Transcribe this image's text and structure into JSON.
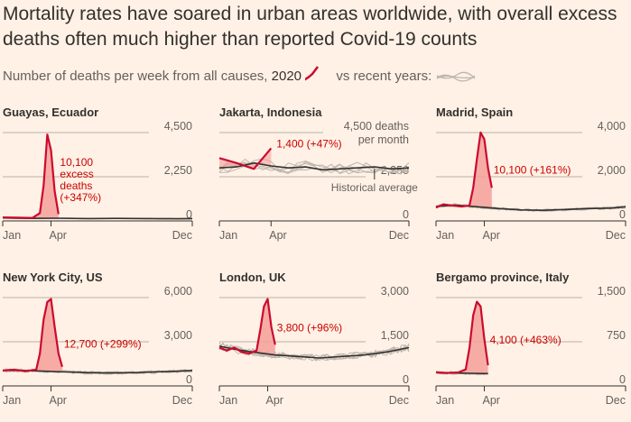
{
  "title": "Mortality rates have soared in urban areas worldwide, with overall excess deaths often much higher than reported Covid-19 counts",
  "subtitle": {
    "prefix": "Number of deaths per week from all causes,",
    "year": "2020",
    "suffix": "vs recent years:"
  },
  "colors": {
    "background": "#fff1e5",
    "series_2020": "#cc0a2e",
    "excess_fill": "#f4a09a",
    "average": "#33302e",
    "recent_years": "#bdb6ae",
    "grid": "#a39b93"
  },
  "chart_data": [
    {
      "type": "line",
      "title": "Guayas, Ecuador",
      "x_ticks": [
        "Jan",
        "Apr",
        "Dec"
      ],
      "y_ticks": [
        "4,500",
        "2,250",
        "0"
      ],
      "ylim": [
        0,
        4500
      ],
      "annotation": [
        "10,100",
        "excess",
        "deaths",
        "(+347%)"
      ],
      "series_2020": [
        [
          1,
          180
        ],
        [
          5,
          170
        ],
        [
          9,
          150
        ],
        [
          11,
          400
        ],
        [
          12,
          1800
        ],
        [
          13,
          4400
        ],
        [
          14,
          3600
        ],
        [
          15,
          1500
        ],
        [
          16,
          350
        ]
      ],
      "average": [
        [
          1,
          150
        ],
        [
          8,
          130
        ],
        [
          16,
          140
        ],
        [
          24,
          120
        ],
        [
          32,
          130
        ],
        [
          40,
          120
        ],
        [
          48,
          110
        ],
        [
          52,
          120
        ]
      ]
    },
    {
      "type": "line",
      "title": "Jakarta, Indonesia",
      "unit_note": [
        "4,500 deaths",
        "per month"
      ],
      "x_ticks": [
        "Jan",
        "Apr",
        "Dec"
      ],
      "y_ticks": [
        "2,250",
        "0"
      ],
      "ylim": [
        0,
        4500
      ],
      "annotation": [
        "1,400 (+47%)"
      ],
      "avg_label": "Historical average",
      "series_2020": [
        [
          1,
          3200
        ],
        [
          2,
          2950
        ],
        [
          3,
          2650
        ],
        [
          4,
          3700
        ]
      ],
      "average": [
        [
          1,
          2700
        ],
        [
          2,
          2750
        ],
        [
          3,
          2950
        ],
        [
          4,
          2800
        ],
        [
          5,
          2700
        ],
        [
          6,
          2750
        ],
        [
          7,
          2600
        ],
        [
          8,
          2650
        ],
        [
          9,
          2700
        ],
        [
          10,
          2750
        ],
        [
          11,
          2650
        ],
        [
          12,
          2700
        ]
      ]
    },
    {
      "type": "line",
      "title": "Madrid, Spain",
      "x_ticks": [
        "Jan",
        "Apr",
        "Dec"
      ],
      "y_ticks": [
        "4,000",
        "2,000",
        "0"
      ],
      "ylim": [
        0,
        4000
      ],
      "annotation": [
        "10,100 (+161%)"
      ],
      "series_2020": [
        [
          1,
          600
        ],
        [
          3,
          750
        ],
        [
          5,
          700
        ],
        [
          8,
          650
        ],
        [
          10,
          700
        ],
        [
          11,
          1500
        ],
        [
          12,
          2800
        ],
        [
          13,
          4000
        ],
        [
          14,
          3700
        ],
        [
          15,
          2400
        ],
        [
          16,
          1500
        ]
      ],
      "average": [
        [
          1,
          650
        ],
        [
          6,
          720
        ],
        [
          12,
          640
        ],
        [
          18,
          560
        ],
        [
          24,
          500
        ],
        [
          30,
          480
        ],
        [
          36,
          520
        ],
        [
          42,
          560
        ],
        [
          48,
          580
        ],
        [
          52,
          640
        ]
      ]
    },
    {
      "type": "line",
      "title": "New York City, US",
      "x_ticks": [
        "Jan",
        "Apr",
        "Dec"
      ],
      "y_ticks": [
        "6,000",
        "3,000",
        "0"
      ],
      "ylim": [
        0,
        6000
      ],
      "annotation": [
        "12,700 (+299%)"
      ],
      "series_2020": [
        [
          1,
          1050
        ],
        [
          4,
          1100
        ],
        [
          7,
          1000
        ],
        [
          10,
          1100
        ],
        [
          11,
          2200
        ],
        [
          12,
          4500
        ],
        [
          13,
          5700
        ],
        [
          14,
          5900
        ],
        [
          15,
          4000
        ],
        [
          16,
          2200
        ],
        [
          17,
          1300
        ]
      ],
      "average": [
        [
          1,
          1050
        ],
        [
          6,
          1050
        ],
        [
          12,
          1000
        ],
        [
          18,
          950
        ],
        [
          24,
          900
        ],
        [
          30,
          880
        ],
        [
          36,
          900
        ],
        [
          42,
          950
        ],
        [
          48,
          1000
        ],
        [
          52,
          1050
        ]
      ]
    },
    {
      "type": "line",
      "title": "London, UK",
      "x_ticks": [
        "Jan",
        "Apr",
        "Dec"
      ],
      "y_ticks": [
        "3,000",
        "1,500",
        "0"
      ],
      "ylim": [
        0,
        3000
      ],
      "annotation": [
        "3,800 (+96%)"
      ],
      "series_2020": [
        [
          1,
          1300
        ],
        [
          3,
          1200
        ],
        [
          5,
          1300
        ],
        [
          7,
          1150
        ],
        [
          9,
          1100
        ],
        [
          11,
          1200
        ],
        [
          12,
          1900
        ],
        [
          13,
          2700
        ],
        [
          14,
          2950
        ],
        [
          15,
          2000
        ],
        [
          16,
          1400
        ]
      ],
      "average": [
        [
          1,
          1350
        ],
        [
          5,
          1250
        ],
        [
          10,
          1150
        ],
        [
          16,
          1050
        ],
        [
          22,
          1000
        ],
        [
          28,
          950
        ],
        [
          34,
          1000
        ],
        [
          40,
          1050
        ],
        [
          46,
          1150
        ],
        [
          52,
          1300
        ]
      ]
    },
    {
      "type": "line",
      "title": "Bergamo province, Italy",
      "x_ticks": [
        "Jan",
        "Apr",
        "Dec"
      ],
      "y_ticks": [
        "1,500",
        "750",
        "0"
      ],
      "ylim": [
        0,
        1500
      ],
      "annotation": [
        "4,100 (+463%)"
      ],
      "series_2020": [
        [
          1,
          230
        ],
        [
          4,
          220
        ],
        [
          7,
          230
        ],
        [
          9,
          280
        ],
        [
          10,
          650
        ],
        [
          11,
          1200
        ],
        [
          12,
          1430
        ],
        [
          13,
          1350
        ],
        [
          14,
          800
        ],
        [
          15,
          350
        ]
      ],
      "average": [
        [
          1,
          230
        ],
        [
          6,
          220
        ],
        [
          10,
          215
        ],
        [
          15,
          210
        ]
      ]
    }
  ]
}
